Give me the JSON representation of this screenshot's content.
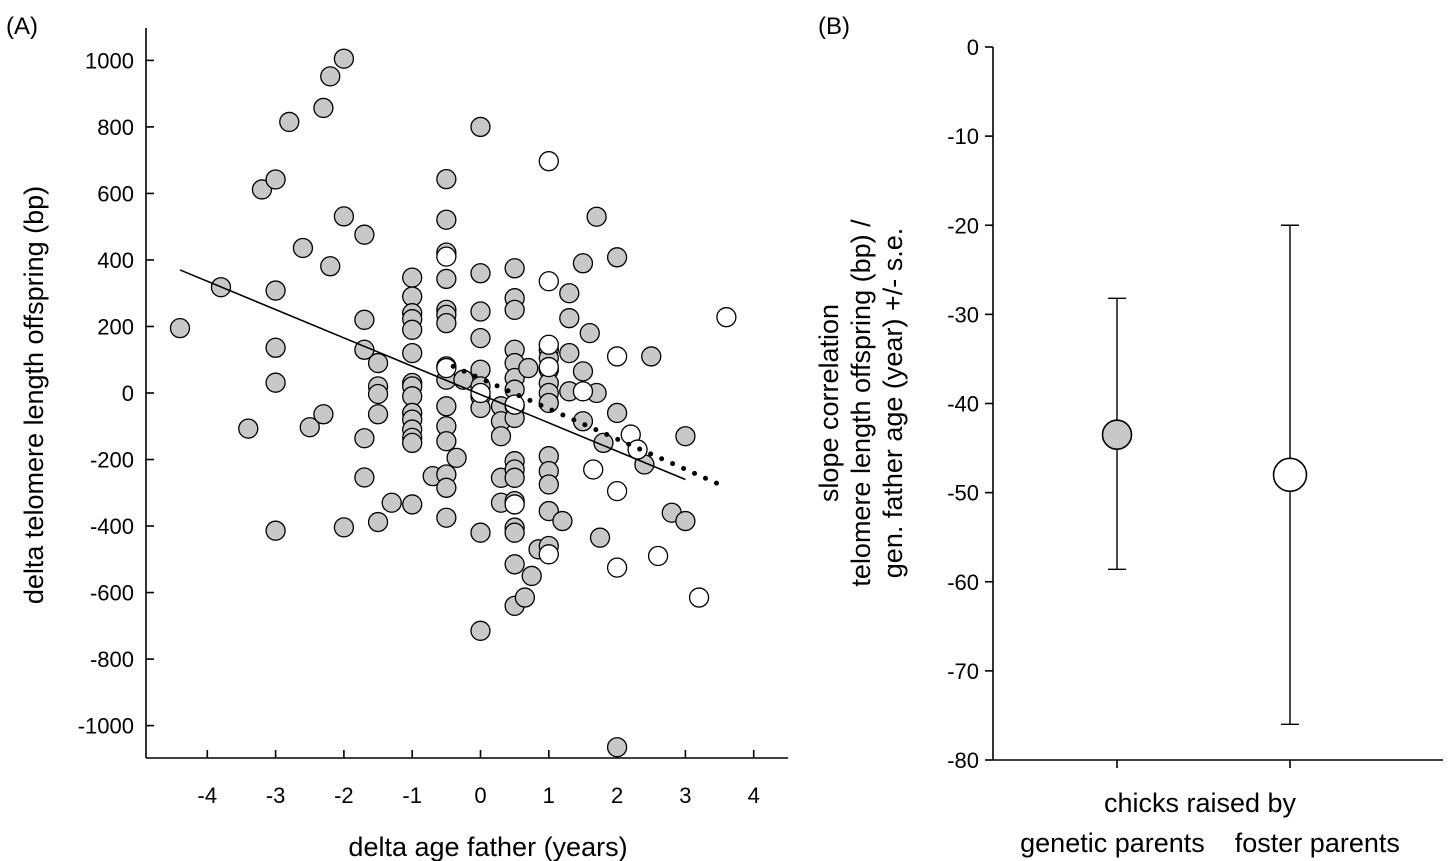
{
  "chart_data": [
    {
      "type": "scatter",
      "panel_label": "(A)",
      "xlabel": "delta age father (years)",
      "ylabel": "delta telomere length offspring (bp)",
      "xlim": [
        -4.7,
        4.7
      ],
      "ylim": [
        -1100,
        1100
      ],
      "x_ticks": [
        -4,
        -3,
        -2,
        -1,
        0,
        1,
        2,
        3,
        4
      ],
      "y_ticks": [
        1000,
        800,
        600,
        400,
        200,
        0,
        -200,
        -400,
        -600,
        -800,
        -1000
      ],
      "colors": {
        "grey_fill": "#c8c8c8",
        "open_fill": "#ffffff",
        "stroke": "#000000"
      },
      "series": [
        {
          "marker": "grey-filled-circle",
          "points": [
            [
              -4.4,
              195
            ],
            [
              -3.8,
              318
            ],
            [
              -3.4,
              -107
            ],
            [
              -3.2,
              612
            ],
            [
              -3.0,
              642
            ],
            [
              -3.0,
              308
            ],
            [
              -3.0,
              136
            ],
            [
              -3.0,
              31
            ],
            [
              -3.0,
              -414
            ],
            [
              -2.8,
              815
            ],
            [
              -2.6,
              436
            ],
            [
              -2.5,
              -103
            ],
            [
              -2.3,
              857
            ],
            [
              -2.3,
              -64
            ],
            [
              -2.2,
              952
            ],
            [
              -2.2,
              381
            ],
            [
              -2.0,
              1005
            ],
            [
              -2.0,
              531
            ],
            [
              -2.0,
              -404
            ],
            [
              -1.7,
              476
            ],
            [
              -1.7,
              220
            ],
            [
              -1.7,
              130
            ],
            [
              -1.7,
              -136
            ],
            [
              -1.7,
              -254
            ],
            [
              -1.5,
              90
            ],
            [
              -1.5,
              20
            ],
            [
              -1.5,
              -3
            ],
            [
              -1.5,
              -64
            ],
            [
              -1.5,
              -388
            ],
            [
              -1.3,
              -330
            ],
            [
              -1.0,
              347
            ],
            [
              -1.0,
              290
            ],
            [
              -1.0,
              240
            ],
            [
              -1.0,
              222
            ],
            [
              -1.0,
              190
            ],
            [
              -1.0,
              120
            ],
            [
              -1.0,
              30
            ],
            [
              -1.0,
              20
            ],
            [
              -1.0,
              -10
            ],
            [
              -1.0,
              -60
            ],
            [
              -1.0,
              -80
            ],
            [
              -1.0,
              -110
            ],
            [
              -1.0,
              -135
            ],
            [
              -1.0,
              -150
            ],
            [
              -1.0,
              -335
            ],
            [
              -0.7,
              -250
            ],
            [
              -0.5,
              643
            ],
            [
              -0.5,
              521
            ],
            [
              -0.5,
              422
            ],
            [
              -0.5,
              343
            ],
            [
              -0.5,
              250
            ],
            [
              -0.5,
              235
            ],
            [
              -0.5,
              210
            ],
            [
              -0.5,
              80
            ],
            [
              -0.5,
              40
            ],
            [
              -0.5,
              -40
            ],
            [
              -0.5,
              -100
            ],
            [
              -0.5,
              -145
            ],
            [
              -0.5,
              -245
            ],
            [
              -0.5,
              -285
            ],
            [
              -0.5,
              -375
            ],
            [
              -0.35,
              -195
            ],
            [
              -0.25,
              40
            ],
            [
              0,
              800
            ],
            [
              0,
              360
            ],
            [
              0,
              245
            ],
            [
              0,
              165
            ],
            [
              0,
              70
            ],
            [
              0,
              20
            ],
            [
              0,
              -10
            ],
            [
              0,
              -45
            ],
            [
              0,
              -420
            ],
            [
              0,
              -715
            ],
            [
              0.3,
              -40
            ],
            [
              0.3,
              -85
            ],
            [
              0.3,
              -130
            ],
            [
              0.3,
              -255
            ],
            [
              0.3,
              -330
            ],
            [
              0.5,
              375
            ],
            [
              0.5,
              285
            ],
            [
              0.5,
              250
            ],
            [
              0.5,
              130
            ],
            [
              0.5,
              90
            ],
            [
              0.5,
              45
            ],
            [
              0.5,
              10
            ],
            [
              0.5,
              -40
            ],
            [
              0.5,
              -75
            ],
            [
              0.5,
              -205
            ],
            [
              0.5,
              -230
            ],
            [
              0.5,
              -255
            ],
            [
              0.5,
              -325
            ],
            [
              0.5,
              -405
            ],
            [
              0.5,
              -420
            ],
            [
              0.5,
              -515
            ],
            [
              0.5,
              -640
            ],
            [
              0.65,
              -615
            ],
            [
              0.7,
              75
            ],
            [
              0.75,
              -550
            ],
            [
              0.85,
              -470
            ],
            [
              1.0,
              130
            ],
            [
              1.0,
              105
            ],
            [
              1.0,
              70
            ],
            [
              1.0,
              30
            ],
            [
              1.0,
              0
            ],
            [
              1.0,
              -30
            ],
            [
              1.0,
              -190
            ],
            [
              1.0,
              -235
            ],
            [
              1.0,
              -275
            ],
            [
              1.0,
              -355
            ],
            [
              1.0,
              -460
            ],
            [
              1.2,
              -385
            ],
            [
              1.3,
              300
            ],
            [
              1.3,
              225
            ],
            [
              1.3,
              120
            ],
            [
              1.3,
              5
            ],
            [
              1.5,
              390
            ],
            [
              1.5,
              65
            ],
            [
              1.5,
              -85
            ],
            [
              1.6,
              180
            ],
            [
              1.7,
              530
            ],
            [
              1.7,
              0
            ],
            [
              1.75,
              -435
            ],
            [
              1.8,
              -150
            ],
            [
              2.0,
              408
            ],
            [
              2.0,
              -60
            ],
            [
              2.0,
              -1065
            ],
            [
              2.4,
              -215
            ],
            [
              2.5,
              110
            ],
            [
              2.8,
              -360
            ],
            [
              3.0,
              -130
            ],
            [
              3.0,
              -385
            ]
          ]
        },
        {
          "marker": "open-circle",
          "points": [
            [
              -0.5,
              410
            ],
            [
              -0.5,
              75
            ],
            [
              0,
              0
            ],
            [
              0.5,
              -35
            ],
            [
              0.5,
              -335
            ],
            [
              1.0,
              697
            ],
            [
              1.0,
              336
            ],
            [
              1.0,
              145
            ],
            [
              1.0,
              78
            ],
            [
              1.0,
              -485
            ],
            [
              1.5,
              5
            ],
            [
              1.65,
              -230
            ],
            [
              2.0,
              110
            ],
            [
              2.0,
              -295
            ],
            [
              2.0,
              -525
            ],
            [
              2.2,
              -125
            ],
            [
              2.3,
              -170
            ],
            [
              2.6,
              -490
            ],
            [
              3.2,
              -615
            ],
            [
              3.6,
              228
            ]
          ]
        }
      ],
      "fit_lines": [
        {
          "style": "solid",
          "x": [
            -4.4,
            3.0
          ],
          "y": [
            370,
            -260
          ]
        },
        {
          "style": "dotted",
          "x": [
            -0.4,
            3.5
          ],
          "y": [
            80,
            -275
          ]
        }
      ]
    },
    {
      "type": "errorbar",
      "panel_label": "(B)",
      "ylabel_lines": [
        "slope correlation",
        "telomere length offspring (bp) /",
        "gen. father age (year) +/- s.e."
      ],
      "xlabel_lines": [
        "chicks raised by",
        "genetic parents    foster parents"
      ],
      "ylim": [
        -80,
        0
      ],
      "y_ticks": [
        0,
        -10,
        -20,
        -30,
        -40,
        -50,
        -60,
        -70,
        -80
      ],
      "points": [
        {
          "group": "genetic parents",
          "value": -43.5,
          "upper": -28.2,
          "lower": -58.6,
          "marker": "grey-filled-circle"
        },
        {
          "group": "foster parents",
          "value": -48.0,
          "upper": -20.0,
          "lower": -76.0,
          "marker": "open-circle"
        }
      ]
    }
  ]
}
